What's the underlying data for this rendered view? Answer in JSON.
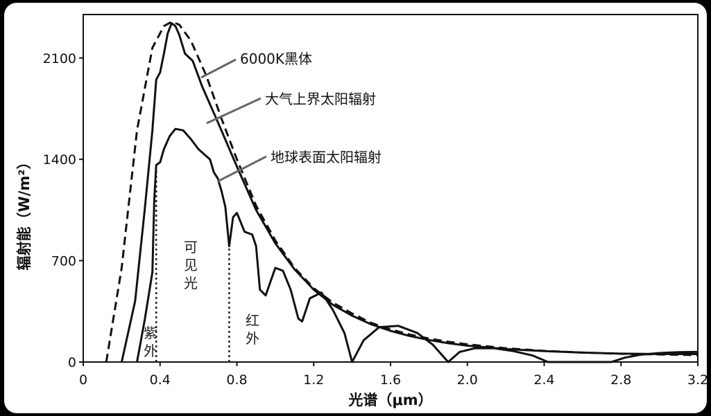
{
  "chart_data": {
    "type": "line",
    "title": "",
    "xlabel": "光谱（μm）",
    "ylabel": "辐射能（W/m²）",
    "xlim": [
      0,
      3.2
    ],
    "ylim": [
      0,
      2400
    ],
    "x_ticks": [
      "0",
      "0.4",
      "0.8",
      "1.2",
      "1.6",
      "2.0",
      "2.4",
      "2.8",
      "3.2"
    ],
    "y_ticks": [
      "0",
      "700",
      "1400",
      "2100"
    ],
    "grid": false,
    "series": [
      {
        "name": "6000K黑体",
        "style": "dashed",
        "points": [
          [
            0.12,
            0
          ],
          [
            0.2,
            650
          ],
          [
            0.28,
            1600
          ],
          [
            0.36,
            2170
          ],
          [
            0.42,
            2320
          ],
          [
            0.46,
            2350
          ],
          [
            0.5,
            2330
          ],
          [
            0.56,
            2220
          ],
          [
            0.64,
            1980
          ],
          [
            0.72,
            1680
          ],
          [
            0.8,
            1400
          ],
          [
            0.9,
            1080
          ],
          [
            1.0,
            840
          ],
          [
            1.1,
            650
          ],
          [
            1.2,
            510
          ],
          [
            1.3,
            410
          ],
          [
            1.4,
            335
          ],
          [
            1.5,
            270
          ],
          [
            1.6,
            225
          ],
          [
            1.7,
            190
          ],
          [
            1.8,
            162
          ],
          [
            1.9,
            140
          ],
          [
            2.0,
            122
          ],
          [
            2.2,
            95
          ],
          [
            2.4,
            77
          ],
          [
            2.6,
            65
          ],
          [
            2.8,
            57
          ],
          [
            3.0,
            52
          ],
          [
            3.2,
            48
          ]
        ]
      },
      {
        "name": "大气上界太阳辐射",
        "style": "solid",
        "points": [
          [
            0.2,
            0
          ],
          [
            0.27,
            420
          ],
          [
            0.32,
            1050
          ],
          [
            0.36,
            1600
          ],
          [
            0.38,
            1950
          ],
          [
            0.4,
            2000
          ],
          [
            0.42,
            2130
          ],
          [
            0.44,
            2270
          ],
          [
            0.46,
            2340
          ],
          [
            0.48,
            2320
          ],
          [
            0.5,
            2260
          ],
          [
            0.53,
            2130
          ],
          [
            0.57,
            2080
          ],
          [
            0.62,
            1900
          ],
          [
            0.7,
            1660
          ],
          [
            0.8,
            1350
          ],
          [
            0.9,
            1050
          ],
          [
            1.0,
            820
          ],
          [
            1.1,
            640
          ],
          [
            1.2,
            500
          ],
          [
            1.3,
            395
          ],
          [
            1.4,
            320
          ],
          [
            1.5,
            260
          ],
          [
            1.6,
            215
          ],
          [
            1.7,
            180
          ],
          [
            1.8,
            152
          ],
          [
            1.9,
            130
          ],
          [
            2.0,
            113
          ],
          [
            2.2,
            90
          ],
          [
            2.4,
            75
          ],
          [
            2.6,
            65
          ],
          [
            2.8,
            58
          ],
          [
            3.0,
            55
          ],
          [
            3.2,
            55
          ]
        ]
      },
      {
        "name": "地球表面太阳辐射",
        "style": "solid",
        "points": [
          [
            0.28,
            0
          ],
          [
            0.32,
            290
          ],
          [
            0.36,
            620
          ],
          [
            0.37,
            1120
          ],
          [
            0.38,
            1360
          ],
          [
            0.4,
            1380
          ],
          [
            0.42,
            1470
          ],
          [
            0.45,
            1560
          ],
          [
            0.48,
            1610
          ],
          [
            0.52,
            1600
          ],
          [
            0.56,
            1540
          ],
          [
            0.6,
            1470
          ],
          [
            0.66,
            1400
          ],
          [
            0.68,
            1310
          ],
          [
            0.7,
            1270
          ],
          [
            0.72,
            1180
          ],
          [
            0.74,
            1070
          ],
          [
            0.76,
            800
          ],
          [
            0.78,
            1000
          ],
          [
            0.8,
            1030
          ],
          [
            0.84,
            900
          ],
          [
            0.88,
            880
          ],
          [
            0.9,
            800
          ],
          [
            0.92,
            500
          ],
          [
            0.95,
            460
          ],
          [
            1.0,
            650
          ],
          [
            1.04,
            630
          ],
          [
            1.08,
            500
          ],
          [
            1.12,
            300
          ],
          [
            1.14,
            280
          ],
          [
            1.18,
            440
          ],
          [
            1.24,
            480
          ],
          [
            1.3,
            360
          ],
          [
            1.36,
            200
          ],
          [
            1.4,
            0
          ],
          [
            1.46,
            150
          ],
          [
            1.54,
            240
          ],
          [
            1.64,
            250
          ],
          [
            1.74,
            200
          ],
          [
            1.82,
            120
          ],
          [
            1.9,
            0
          ],
          [
            1.96,
            70
          ],
          [
            2.04,
            95
          ],
          [
            2.14,
            95
          ],
          [
            2.24,
            75
          ],
          [
            2.34,
            45
          ],
          [
            2.42,
            0
          ],
          [
            2.75,
            0
          ],
          [
            2.82,
            30
          ],
          [
            2.9,
            50
          ],
          [
            3.0,
            62
          ],
          [
            3.1,
            68
          ],
          [
            3.2,
            70
          ]
        ]
      }
    ],
    "annotations": {
      "blackbody": "6000K黑体",
      "top_of_atmosphere": "大气上界太阳辐射",
      "surface": "地球表面太阳辐射",
      "uv_line1": "紫",
      "uv_line2": "外",
      "visible_line1": "可",
      "visible_line2": "见",
      "visible_line3": "光",
      "ir_line1": "红",
      "ir_line2": "外"
    },
    "region_boundaries_um": [
      0.38,
      0.76
    ]
  }
}
